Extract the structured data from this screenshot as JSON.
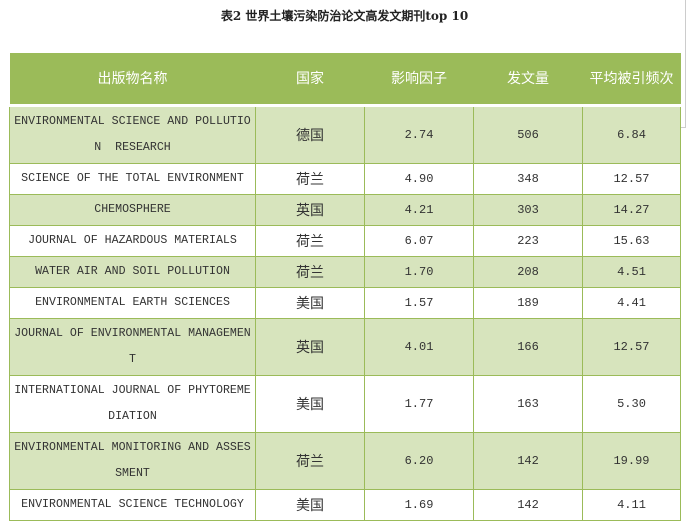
{
  "title": "表2 世界土壤污染防治论文高发文期刊top 10",
  "colors": {
    "header": "#9bbb59",
    "band": "#d7e4bd",
    "border": "#9bbb59"
  },
  "headers": [
    "出版物名称",
    "国家",
    "影响因子",
    "发文量",
    "平均被引频次"
  ],
  "rows": [
    {
      "name": "ENVIRONMENTAL SCIENCE AND POLLUTION  RESEARCH",
      "country": "德国",
      "if": "2.74",
      "count": "506",
      "cites": "6.84"
    },
    {
      "name": "SCIENCE OF THE TOTAL ENVIRONMENT",
      "country": "荷兰",
      "if": "4.90",
      "count": "348",
      "cites": "12.57"
    },
    {
      "name": "CHEMOSPHERE",
      "country": "英国",
      "if": "4.21",
      "count": "303",
      "cites": "14.27"
    },
    {
      "name": "JOURNAL OF HAZARDOUS MATERIALS",
      "country": "荷兰",
      "if": "6.07",
      "count": "223",
      "cites": "15.63"
    },
    {
      "name": "WATER AIR AND SOIL POLLUTION",
      "country": "荷兰",
      "if": "1.70",
      "count": "208",
      "cites": "4.51"
    },
    {
      "name": "ENVIRONMENTAL EARTH SCIENCES",
      "country": "美国",
      "if": "1.57",
      "count": "189",
      "cites": "4.41"
    },
    {
      "name": "JOURNAL OF ENVIRONMENTAL MANAGEMENT",
      "country": "英国",
      "if": "4.01",
      "count": "166",
      "cites": "12.57"
    },
    {
      "name": "INTERNATIONAL JOURNAL OF PHYTOREMEDIATION",
      "country": "美国",
      "if": "1.77",
      "count": "163",
      "cites": "5.30"
    },
    {
      "name": "ENVIRONMENTAL MONITORING AND ASSESSMENT",
      "country": "荷兰",
      "if": "6.20",
      "count": "142",
      "cites": "19.99"
    },
    {
      "name": "ENVIRONMENTAL SCIENCE TECHNOLOGY",
      "country": "美国",
      "if": "1.69",
      "count": "142",
      "cites": "4.11"
    }
  ]
}
